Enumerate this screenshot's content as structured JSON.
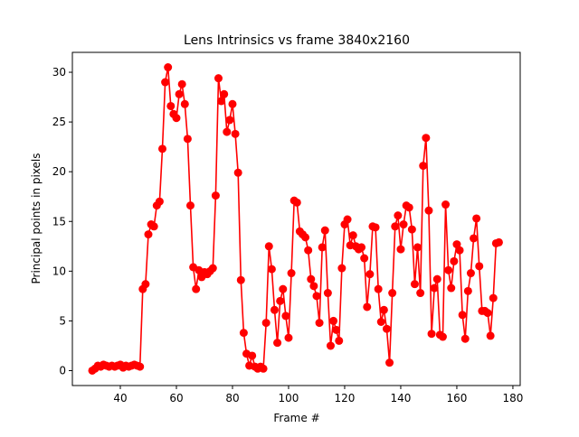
{
  "chart_data": {
    "type": "line",
    "title": "Lens Intrinsics vs frame 3840x2160",
    "xlabel": "Frame #",
    "ylabel": "Principal points in pixels",
    "xlim": [
      22.9,
      182.6
    ],
    "ylim": [
      -1.5,
      32
    ],
    "xticks": [
      40,
      60,
      80,
      100,
      120,
      140,
      160,
      180
    ],
    "yticks": [
      0,
      5,
      10,
      15,
      20,
      25,
      30
    ],
    "grid": false,
    "color": "#ff0000",
    "marker": "circle",
    "x_start": 30,
    "values": [
      0.0,
      0.2,
      0.5,
      0.4,
      0.6,
      0.5,
      0.4,
      0.5,
      0.4,
      0.5,
      0.6,
      0.3,
      0.5,
      0.4,
      0.5,
      0.6,
      0.5,
      0.4,
      8.2,
      8.7,
      13.7,
      14.7,
      14.5,
      16.6,
      17.0,
      22.3,
      29.0,
      30.5,
      26.6,
      25.8,
      25.4,
      27.8,
      28.8,
      26.8,
      23.3,
      16.6,
      10.4,
      8.2,
      10.1,
      9.4,
      9.9,
      9.7,
      10.0,
      10.3,
      17.6,
      29.4,
      27.1,
      27.8,
      24.0,
      25.2,
      26.8,
      23.8,
      19.9,
      9.1,
      3.8,
      1.7,
      0.5,
      1.5,
      0.4,
      0.2,
      0.4,
      0.2,
      4.8,
      12.5,
      10.2,
      6.1,
      2.8,
      7.0,
      8.2,
      5.5,
      3.3,
      9.8,
      17.1,
      16.9,
      14.0,
      13.7,
      13.4,
      12.1,
      9.2,
      8.5,
      7.5,
      4.8,
      12.4,
      14.1,
      7.8,
      2.5,
      5.0,
      4.1,
      3.0,
      10.3,
      14.7,
      15.2,
      12.6,
      13.6,
      12.5,
      12.2,
      12.4,
      11.3,
      6.4,
      9.7,
      14.5,
      14.4,
      8.2,
      4.9,
      6.1,
      4.2,
      0.8,
      7.8,
      14.5,
      15.6,
      12.2,
      14.7,
      16.6,
      16.4,
      14.2,
      8.7,
      12.4,
      7.8,
      20.6,
      23.4,
      16.1,
      3.7,
      8.3,
      9.2,
      3.6,
      3.4,
      16.7,
      10.1,
      8.3,
      11.0,
      12.7,
      12.1,
      5.6,
      3.2,
      8.0,
      9.8,
      13.3,
      15.3,
      10.5,
      6.0,
      6.0,
      5.8,
      3.5,
      7.3,
      12.8,
      12.9
    ]
  }
}
